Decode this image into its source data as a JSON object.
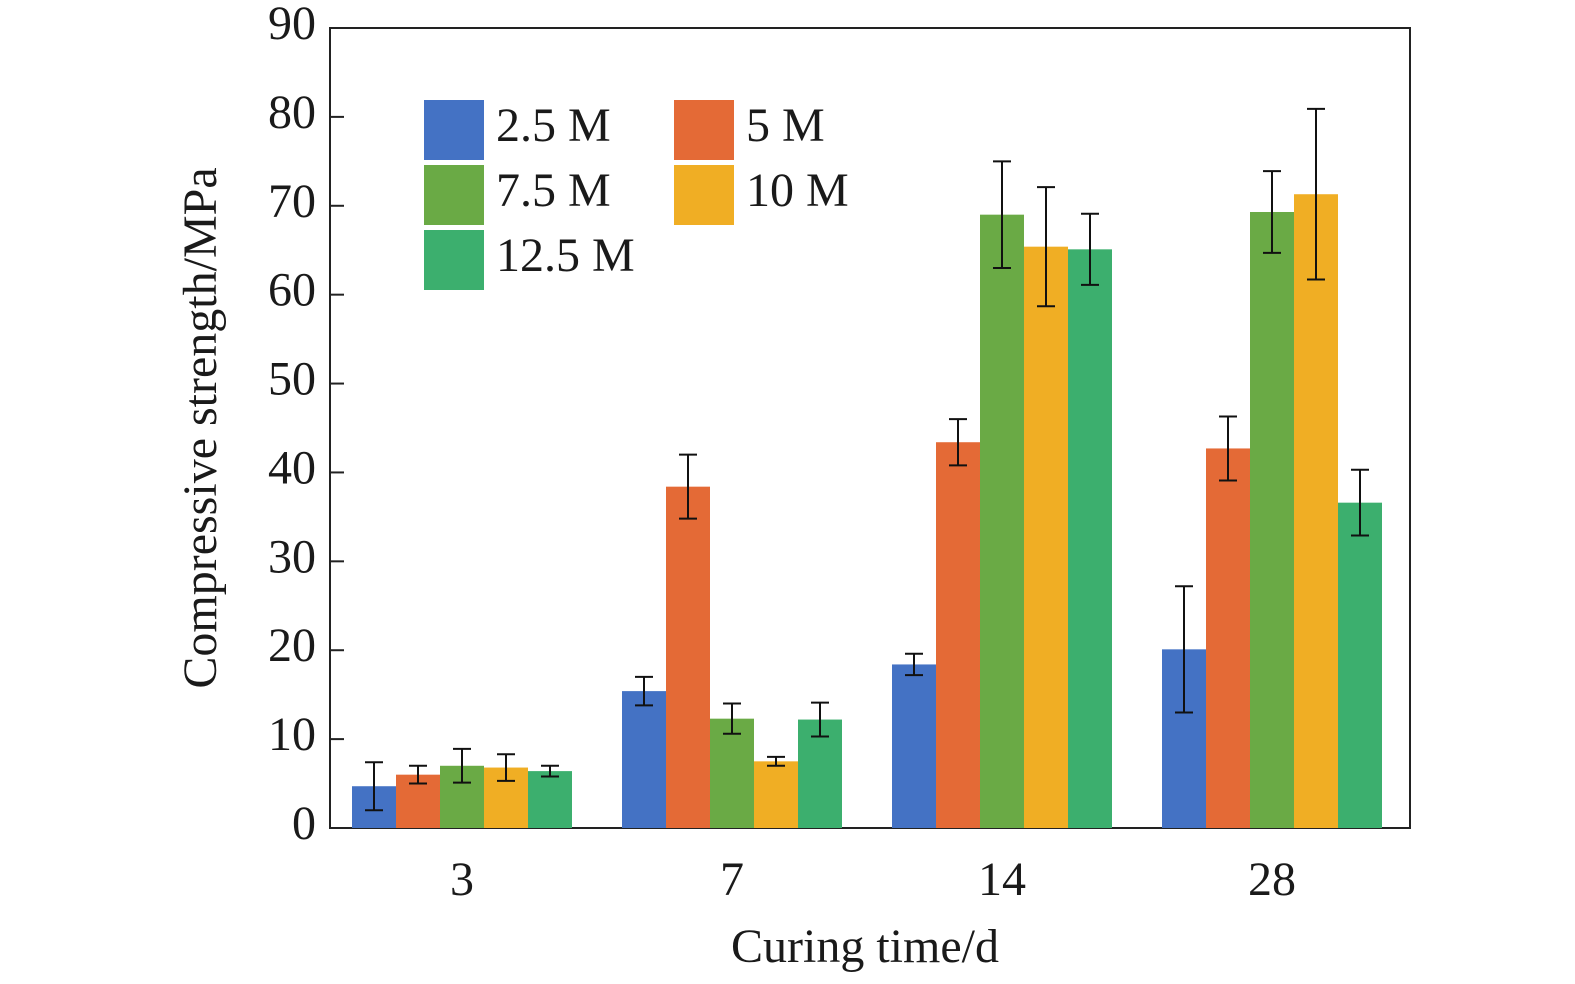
{
  "chart_data": {
    "type": "bar",
    "title": "",
    "xlabel": "Curing time/d",
    "ylabel": "Compressive strength/MPa",
    "categories": [
      "3",
      "7",
      "14",
      "28"
    ],
    "ylim": [
      0,
      90
    ],
    "yticks": [
      0,
      10,
      20,
      30,
      40,
      50,
      60,
      70,
      80,
      90
    ],
    "grid": false,
    "legend_position": "top-left",
    "series": [
      {
        "name": "2.5 M",
        "color": "#4472c4",
        "values": [
          4.7,
          15.4,
          18.4,
          20.1
        ],
        "errors": [
          2.7,
          1.6,
          1.2,
          7.1
        ]
      },
      {
        "name": "5 M",
        "color": "#e46a36",
        "values": [
          6.0,
          38.4,
          43.4,
          42.7
        ],
        "errors": [
          1.0,
          3.6,
          2.6,
          3.6
        ]
      },
      {
        "name": "7.5 M",
        "color": "#6aaa45",
        "values": [
          7.0,
          12.3,
          69.0,
          69.3
        ],
        "errors": [
          1.9,
          1.7,
          6.0,
          4.6
        ]
      },
      {
        "name": "10 M",
        "color": "#f0ae24",
        "values": [
          6.8,
          7.5,
          65.4,
          71.3
        ],
        "errors": [
          1.5,
          0.5,
          6.7,
          9.6
        ]
      },
      {
        "name": "12.5 M",
        "color": "#3caf6e",
        "values": [
          6.4,
          12.2,
          65.1,
          36.6
        ],
        "errors": [
          0.6,
          1.9,
          4.0,
          3.7
        ]
      }
    ]
  }
}
